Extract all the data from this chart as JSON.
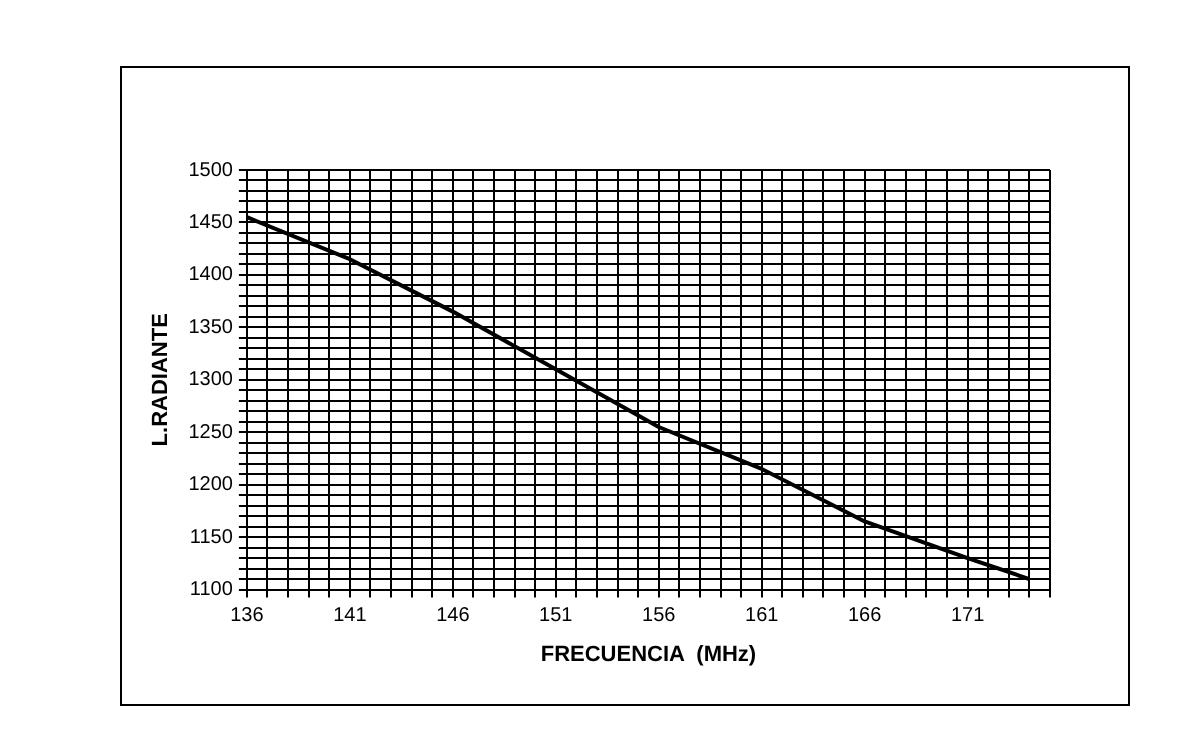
{
  "chart_data": {
    "type": "line",
    "xlabel": "FRECUENCIA  (MHz)",
    "ylabel": "L.RADIANTE",
    "x": [
      136,
      141,
      145,
      146,
      151,
      156,
      161,
      166,
      171,
      174
    ],
    "series": [
      {
        "color": "#000000",
        "values": [
          1455,
          1415,
          1375,
          1365,
          1310,
          1255,
          1215,
          1165,
          1130,
          1110
        ]
      }
    ],
    "xlim": [
      136,
      175
    ],
    "xticks": [
      136,
      {
        "value": 137,
        "label": null
      },
      {
        "value": 138,
        "label": null
      },
      {
        "value": 139,
        "label": null
      },
      {
        "value": 140,
        "label": null
      },
      141,
      {
        "value": 142,
        "label": null
      },
      {
        "value": 143,
        "label": null
      },
      {
        "value": 144,
        "label": null
      },
      {
        "value": 145,
        "label": null
      },
      146,
      {
        "value": 147,
        "label": null
      },
      {
        "value": 148,
        "label": null
      },
      {
        "value": 149,
        "label": null
      },
      {
        "value": 150,
        "label": null
      },
      151,
      {
        "value": 152,
        "label": null
      },
      {
        "value": 153,
        "label": null
      },
      {
        "value": 154,
        "label": null
      },
      {
        "value": 155,
        "label": null
      },
      156,
      {
        "value": 157,
        "label": null
      },
      {
        "value": 158,
        "label": null
      },
      {
        "value": 159,
        "label": null
      },
      {
        "value": 160,
        "label": null
      },
      161,
      {
        "value": 162,
        "label": null
      },
      {
        "value": 163,
        "label": null
      },
      {
        "value": 164,
        "label": null
      },
      {
        "value": 165,
        "label": null
      },
      166,
      {
        "value": 167,
        "label": null
      },
      {
        "value": 168,
        "label": null
      },
      {
        "value": 169,
        "label": null
      },
      {
        "value": 170,
        "label": null
      },
      171,
      {
        "value": 172,
        "label": null
      },
      {
        "value": 173,
        "label": null
      },
      {
        "value": 174,
        "label": null
      },
      {
        "value": 175,
        "label": null
      }
    ],
    "ylim": [
      1100,
      1500
    ],
    "yticks": [
      1100,
      {
        "value": 1110,
        "label": null
      },
      {
        "value": 1120,
        "label": null
      },
      {
        "value": 1130,
        "label": null
      },
      {
        "value": 1140,
        "label": null
      },
      1150,
      {
        "value": 1160,
        "label": null
      },
      {
        "value": 1170,
        "label": null
      },
      {
        "value": 1180,
        "label": null
      },
      {
        "value": 1190,
        "label": null
      },
      1200,
      {
        "value": 1210,
        "label": null
      },
      {
        "value": 1220,
        "label": null
      },
      {
        "value": 1230,
        "label": null
      },
      {
        "value": 1240,
        "label": null
      },
      1250,
      {
        "value": 1260,
        "label": null
      },
      {
        "value": 1270,
        "label": null
      },
      {
        "value": 1280,
        "label": null
      },
      {
        "value": 1290,
        "label": null
      },
      1300,
      {
        "value": 1310,
        "label": null
      },
      {
        "value": 1320,
        "label": null
      },
      {
        "value": 1330,
        "label": null
      },
      {
        "value": 1340,
        "label": null
      },
      1350,
      {
        "value": 1360,
        "label": null
      },
      {
        "value": 1370,
        "label": null
      },
      {
        "value": 1380,
        "label": null
      },
      {
        "value": 1390,
        "label": null
      },
      1400,
      {
        "value": 1410,
        "label": null
      },
      {
        "value": 1420,
        "label": null
      },
      {
        "value": 1430,
        "label": null
      },
      {
        "value": 1440,
        "label": null
      },
      1450,
      {
        "value": 1460,
        "label": null
      },
      {
        "value": 1470,
        "label": null
      },
      {
        "value": 1480,
        "label": null
      },
      {
        "value": 1490,
        "label": null
      },
      1500
    ],
    "grid": true,
    "marker": "none",
    "line_style": "solid"
  }
}
